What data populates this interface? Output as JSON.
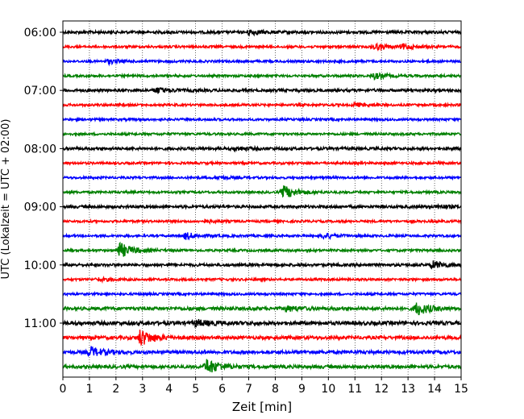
{
  "chart_data": {
    "type": "line",
    "title": "",
    "xlabel": "Zeit  [min]",
    "ylabel": "UTC (Lokalzeit = UTC + 02:00)",
    "xlim": [
      0,
      15
    ],
    "x_ticks": [
      "0",
      "1",
      "2",
      "3",
      "4",
      "5",
      "6",
      "7",
      "8",
      "9",
      "10",
      "11",
      "12",
      "13",
      "14",
      "15"
    ],
    "y_tick_labels": [
      "06:00",
      "07:00",
      "08:00",
      "09:00",
      "10:00",
      "11:00"
    ],
    "y_tick_rows": [
      0,
      4,
      8,
      12,
      16,
      20
    ],
    "row_count": 24,
    "row_interval_min": 15,
    "grid": "vertical-dotted",
    "colors": [
      "#000000",
      "#ff0000",
      "#0000ff",
      "#008000"
    ],
    "events": [
      {
        "row": 0,
        "minute": 7.0,
        "amplitude": 0.6
      },
      {
        "row": 1,
        "minute": 11.7,
        "amplitude": 0.8
      },
      {
        "row": 1,
        "minute": 12.8,
        "amplitude": 0.6
      },
      {
        "row": 2,
        "minute": 1.7,
        "amplitude": 0.5
      },
      {
        "row": 3,
        "minute": 11.7,
        "amplitude": 0.7
      },
      {
        "row": 4,
        "minute": 3.5,
        "amplitude": 0.7
      },
      {
        "row": 5,
        "minute": 11.0,
        "amplitude": 0.4
      },
      {
        "row": 8,
        "minute": 6.5,
        "amplitude": 0.4
      },
      {
        "row": 10,
        "minute": 5.8,
        "amplitude": 0.3
      },
      {
        "row": 11,
        "minute": 8.3,
        "amplitude": 1.6
      },
      {
        "row": 12,
        "minute": 14.1,
        "amplitude": 0.4
      },
      {
        "row": 13,
        "minute": 5.3,
        "amplitude": 0.3
      },
      {
        "row": 14,
        "minute": 4.6,
        "amplitude": 0.8
      },
      {
        "row": 14,
        "minute": 9.8,
        "amplitude": 0.7
      },
      {
        "row": 15,
        "minute": 2.1,
        "amplitude": 2.0
      },
      {
        "row": 16,
        "minute": 13.9,
        "amplitude": 0.9
      },
      {
        "row": 17,
        "minute": 1.3,
        "amplitude": 0.4
      },
      {
        "row": 19,
        "minute": 13.3,
        "amplitude": 1.6
      },
      {
        "row": 19,
        "minute": 8.4,
        "amplitude": 0.6
      },
      {
        "row": 20,
        "minute": 5.0,
        "amplitude": 0.7
      },
      {
        "row": 21,
        "minute": 2.9,
        "amplitude": 2.0
      },
      {
        "row": 22,
        "minute": 1.0,
        "amplitude": 1.3
      },
      {
        "row": 23,
        "minute": 5.4,
        "amplitude": 1.9
      }
    ]
  }
}
